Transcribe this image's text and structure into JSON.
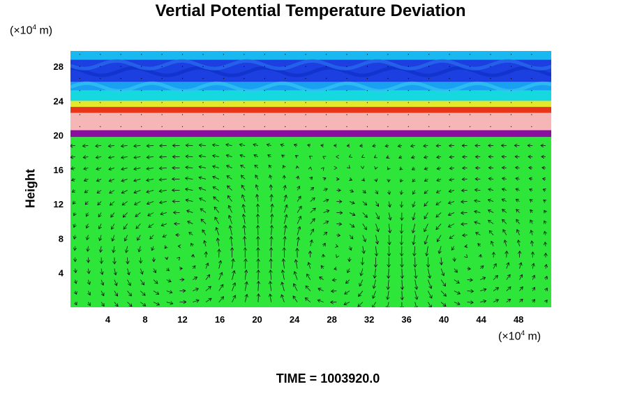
{
  "chart_data": {
    "type": "heatmap",
    "title": "Vertial Potential Temperature Deviation",
    "ylabel": "Height",
    "x_unit_prefix": "(×10",
    "x_unit_exp": "4",
    "x_unit_suffix": " m)",
    "y_unit_prefix": "(×10",
    "y_unit_exp": "4",
    "y_unit_suffix": " m)",
    "xlim": [
      0,
      51.5
    ],
    "ylim": [
      0,
      29.8
    ],
    "x_ticks": [
      4,
      8,
      12,
      16,
      20,
      24,
      28,
      32,
      36,
      40,
      44,
      48
    ],
    "y_ticks": [
      4,
      8,
      12,
      16,
      20,
      24,
      28
    ],
    "x_tick_labels": [
      "4",
      "8",
      "12",
      "16",
      "20",
      "24",
      "28",
      "32",
      "36",
      "40",
      "44",
      "48"
    ],
    "y_tick_labels": [
      "4",
      "8",
      "12",
      "16",
      "20",
      "24",
      "28"
    ],
    "layers": [
      {
        "y0": 0,
        "y1": 19.8,
        "color": "#2ee63a"
      },
      {
        "y0": 19.8,
        "y1": 20.6,
        "color": "#8a0da0"
      },
      {
        "y0": 20.6,
        "y1": 22.6,
        "color": "#f7b6b6"
      },
      {
        "y0": 22.6,
        "y1": 23.3,
        "color": "#e8361b"
      },
      {
        "y0": 23.3,
        "y1": 24.0,
        "color": "#e6e62a"
      },
      {
        "y0": 24.0,
        "y1": 25.2,
        "color": "#16d9e0"
      },
      {
        "y0": 25.2,
        "y1": 26.2,
        "color": "#1aa0f0"
      },
      {
        "y0": 26.2,
        "y1": 28.8,
        "color": "#1b3fe0"
      },
      {
        "y0": 28.8,
        "y1": 29.8,
        "color": "#1ab8f0"
      }
    ],
    "vortex_centers": [
      {
        "x": 12,
        "y": 6,
        "rx": 9,
        "ry": 8
      },
      {
        "x": 28,
        "y": 6,
        "rx": 8,
        "ry": 8
      },
      {
        "x": 42,
        "y": 6,
        "rx": 7,
        "ry": 6
      }
    ]
  },
  "time_label": "TIME = 1003920.0"
}
